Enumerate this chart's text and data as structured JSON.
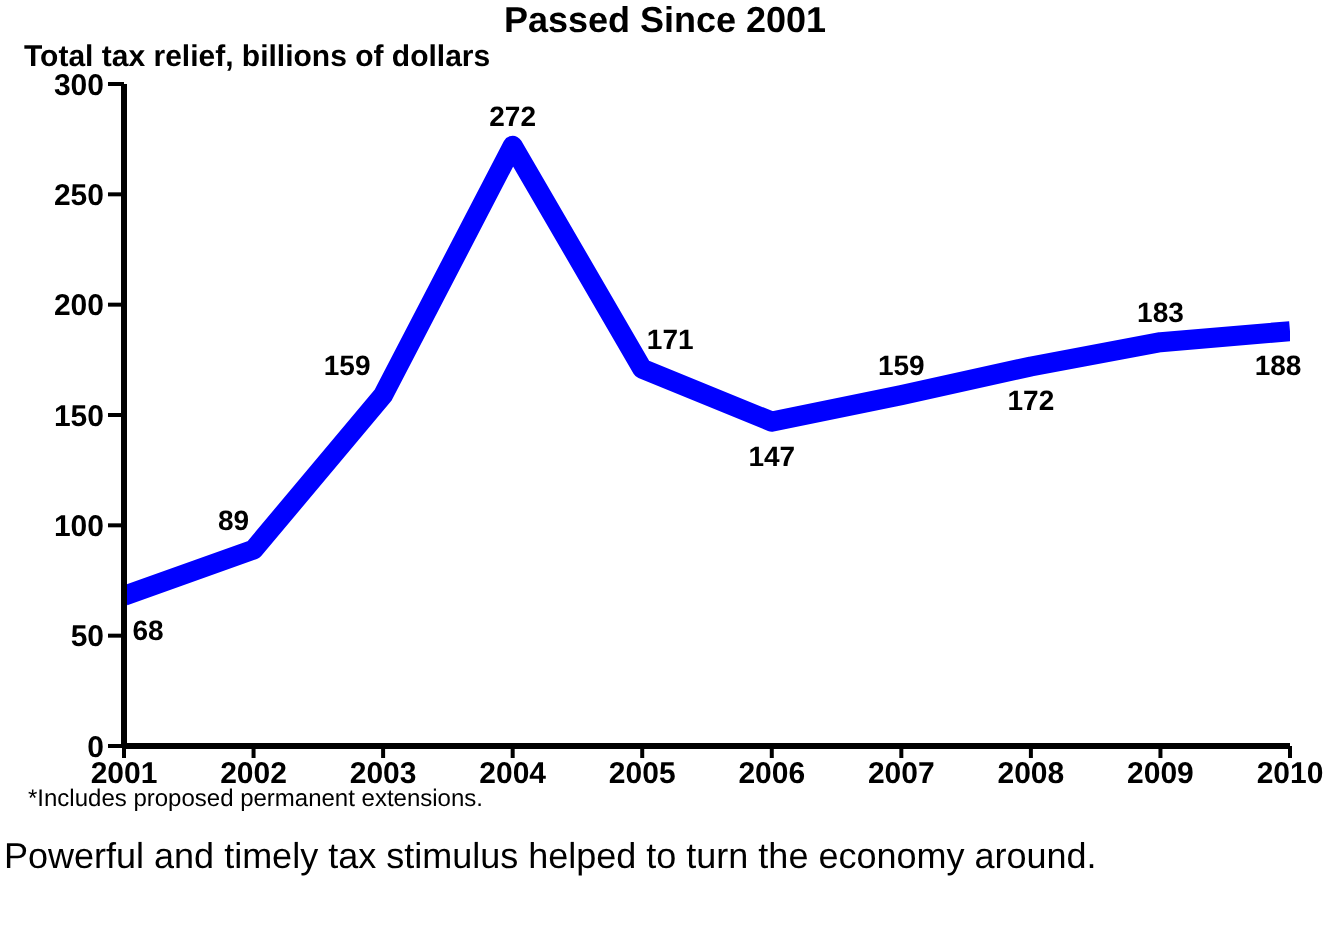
{
  "chart_data": {
    "type": "line",
    "title": "Passed Since 2001",
    "ylabel": "Total tax relief, billions of dollars",
    "x": [
      2001,
      2002,
      2003,
      2004,
      2005,
      2006,
      2007,
      2008,
      2009,
      2010
    ],
    "series": [
      {
        "color": "#0000ff",
        "values": [
          68,
          89,
          159,
          272,
          171,
          147,
          159,
          172,
          183,
          188
        ]
      }
    ],
    "xlim": [
      2001,
      2010
    ],
    "xticks": [
      2001,
      2002,
      2003,
      2004,
      2005,
      2006,
      2007,
      2008,
      2009,
      2010
    ],
    "ylim": [
      0,
      300
    ],
    "yticks": [
      0,
      50,
      100,
      150,
      200,
      250,
      300
    ],
    "data_labels": true,
    "grid": false,
    "legend": false,
    "marker": "none",
    "line_style": "solid",
    "annotations": [
      "*Includes proposed permanent extensions.",
      "Powerful and timely tax stimulus helped to turn the economy around."
    ]
  }
}
